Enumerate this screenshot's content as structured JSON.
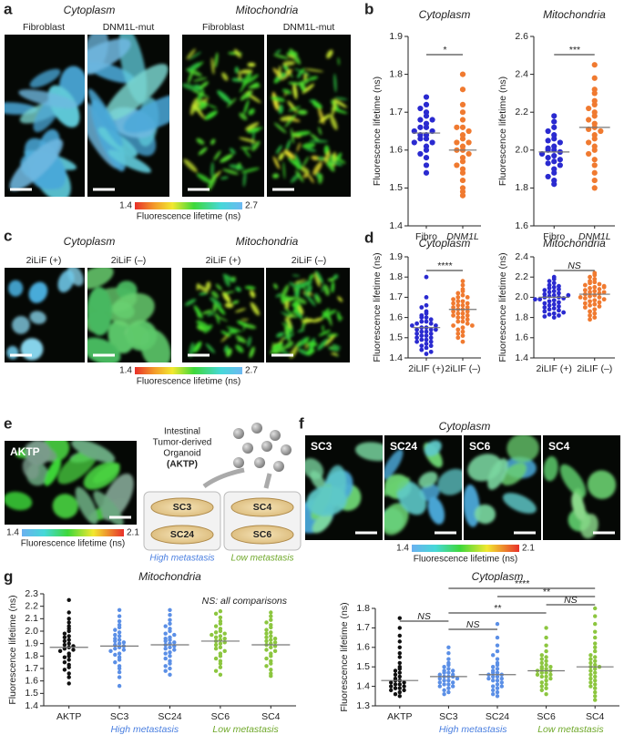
{
  "panels": {
    "a": {
      "letter": "a",
      "headers": [
        "Cytoplasm",
        "Mitochondria"
      ],
      "image_labels": [
        "Fibroblast",
        "DNM1L-mut",
        "Fibroblast",
        "DNM1L-mut"
      ],
      "colorbar": {
        "min": 1.4,
        "max": 2.7,
        "label": "Fluorescence lifetime (ns)"
      }
    },
    "b": {
      "letter": "b"
    },
    "c": {
      "letter": "c",
      "headers": [
        "Cytoplasm",
        "Mitochondria"
      ],
      "image_labels": [
        "2iLiF (+)",
        "2iLiF (–)",
        "2iLiF (+)",
        "2iLiF (–)"
      ],
      "colorbar": {
        "min": 1.4,
        "max": 2.7,
        "label": "Fluorescence lifetime (ns)"
      }
    },
    "d": {
      "letter": "d"
    },
    "e": {
      "letter": "e",
      "image_label": "AKTP",
      "colorbar": {
        "min": 1.4,
        "max": 2.1,
        "label": "Fluorescence lifetime (ns)"
      },
      "organoid_text": [
        "Intestinal",
        "Tumor-derived",
        "Organoid",
        "(AKTP)"
      ],
      "dishes": [
        "SC3",
        "SC24",
        "SC4",
        "SC6"
      ],
      "groups": [
        "High metastasis",
        "Low metastasis"
      ]
    },
    "f": {
      "letter": "f",
      "title": "Cytoplasm",
      "image_labels": [
        "SC3",
        "SC24",
        "SC6",
        "SC4"
      ],
      "colorbar": {
        "min": 1.4,
        "max": 2.1,
        "label": "Fluorescence lifetime (ns)"
      }
    },
    "g": {
      "letter": "g"
    }
  },
  "chart_data": [
    {
      "type": "strip",
      "title": "Cytoplasm",
      "ylabel": "Fluorescence lifetime (ns)",
      "categories": [
        "Fibro",
        "DNM1L"
      ],
      "colors": [
        "#2a2ad0",
        "#f07a30"
      ],
      "values": [
        [
          1.74,
          1.72,
          1.71,
          1.7,
          1.69,
          1.68,
          1.68,
          1.67,
          1.66,
          1.66,
          1.65,
          1.65,
          1.64,
          1.64,
          1.63,
          1.63,
          1.62,
          1.62,
          1.61,
          1.6,
          1.59,
          1.58,
          1.56,
          1.54
        ],
        [
          1.8,
          1.76,
          1.72,
          1.7,
          1.68,
          1.66,
          1.66,
          1.65,
          1.64,
          1.63,
          1.62,
          1.62,
          1.61,
          1.6,
          1.6,
          1.59,
          1.58,
          1.57,
          1.56,
          1.55,
          1.54,
          1.52,
          1.5,
          1.49,
          1.48
        ]
      ],
      "means": [
        1.645,
        1.6
      ],
      "ylim": [
        1.4,
        1.9
      ],
      "yticks": [
        1.4,
        1.5,
        1.6,
        1.7,
        1.8,
        1.9
      ],
      "comparisons": [
        {
          "from": "Fibro",
          "to": "DNM1L",
          "label": "*"
        }
      ]
    },
    {
      "type": "strip",
      "title": "Mitochondria",
      "ylabel": "Fluorescence lifetime (ns)",
      "categories": [
        "Fibro",
        "DNM1L"
      ],
      "colors": [
        "#2a2ad0",
        "#f07a30"
      ],
      "values": [
        [
          2.18,
          2.15,
          2.12,
          2.1,
          2.08,
          2.06,
          2.05,
          2.04,
          2.02,
          2.01,
          2.0,
          2.0,
          1.99,
          1.98,
          1.97,
          1.96,
          1.95,
          1.94,
          1.93,
          1.92,
          1.9,
          1.88,
          1.86,
          1.84,
          1.82
        ],
        [
          2.45,
          2.38,
          2.32,
          2.3,
          2.26,
          2.24,
          2.22,
          2.2,
          2.18,
          2.16,
          2.14,
          2.12,
          2.11,
          2.1,
          2.08,
          2.06,
          2.04,
          2.02,
          2.0,
          1.98,
          1.95,
          1.92,
          1.88,
          1.84,
          1.8
        ]
      ],
      "means": [
        1.99,
        2.12
      ],
      "ylim": [
        1.6,
        2.6
      ],
      "yticks": [
        1.6,
        1.8,
        {
          "value": 2,
          "label": "2.0"
        },
        2.2,
        2.4,
        2.6
      ],
      "comparisons": [
        {
          "from": "Fibro",
          "to": "DNM1L",
          "label": "***"
        }
      ]
    },
    {
      "type": "strip",
      "title": "Cytoplasm",
      "ylabel": "Fluorescence lifetime (ns)",
      "categories": [
        "2iLIF (+)",
        "2iLIF (–)"
      ],
      "colors": [
        "#2a2ad0",
        "#f07a30"
      ],
      "values": [
        [
          1.8,
          1.7,
          1.66,
          1.65,
          1.63,
          1.62,
          1.61,
          1.6,
          1.6,
          1.59,
          1.58,
          1.58,
          1.57,
          1.57,
          1.56,
          1.56,
          1.55,
          1.55,
          1.54,
          1.54,
          1.54,
          1.53,
          1.53,
          1.52,
          1.52,
          1.51,
          1.51,
          1.5,
          1.5,
          1.49,
          1.49,
          1.48,
          1.48,
          1.47,
          1.46,
          1.46,
          1.45,
          1.44,
          1.43,
          1.42
        ],
        [
          1.78,
          1.76,
          1.74,
          1.73,
          1.72,
          1.71,
          1.7,
          1.7,
          1.69,
          1.68,
          1.68,
          1.67,
          1.67,
          1.66,
          1.66,
          1.65,
          1.65,
          1.64,
          1.64,
          1.63,
          1.63,
          1.62,
          1.62,
          1.61,
          1.61,
          1.6,
          1.6,
          1.59,
          1.58,
          1.58,
          1.57,
          1.56,
          1.56,
          1.55,
          1.54,
          1.53,
          1.52,
          1.51,
          1.5,
          1.48
        ]
      ],
      "means": [
        1.55,
        1.64
      ],
      "ylim": [
        1.4,
        1.9
      ],
      "yticks": [
        1.4,
        1.5,
        1.6,
        1.7,
        1.8,
        1.9
      ],
      "comparisons": [
        {
          "from": "2iLIF (+)",
          "to": "2iLIF (–)",
          "label": "****"
        }
      ]
    },
    {
      "type": "strip",
      "title": "Mitochondria",
      "ylabel": "Fluorescence lifetime (ns)",
      "categories": [
        "2iLIF (+)",
        "2iLIF (–)"
      ],
      "colors": [
        "#2a2ad0",
        "#f07a30"
      ],
      "values": [
        [
          2.2,
          2.18,
          2.16,
          2.14,
          2.12,
          2.11,
          2.1,
          2.09,
          2.08,
          2.07,
          2.06,
          2.05,
          2.04,
          2.03,
          2.02,
          2.01,
          2.0,
          2.0,
          1.99,
          1.98,
          1.97,
          1.96,
          1.95,
          1.94,
          1.93,
          1.92,
          1.91,
          1.9,
          1.89,
          1.88,
          1.87,
          1.86,
          1.85,
          1.84,
          1.83,
          1.82,
          1.81,
          1.8,
          2.02,
          1.98
        ],
        [
          2.24,
          2.22,
          2.2,
          2.18,
          2.16,
          2.15,
          2.14,
          2.13,
          2.12,
          2.11,
          2.1,
          2.09,
          2.08,
          2.07,
          2.06,
          2.05,
          2.04,
          2.03,
          2.02,
          2.01,
          2.0,
          1.99,
          1.98,
          1.97,
          1.96,
          1.95,
          1.94,
          1.93,
          1.92,
          1.91,
          1.9,
          1.88,
          1.86,
          1.84,
          1.82,
          1.8,
          1.78,
          2.05,
          2.1,
          2.0
        ]
      ],
      "means": [
        2.0,
        2.03
      ],
      "ylim": [
        1.4,
        2.4
      ],
      "yticks": [
        1.4,
        1.6,
        1.8,
        {
          "value": 2,
          "label": "2.0"
        },
        2.2,
        2.4
      ],
      "comparisons": [
        {
          "from": "2iLIF (+)",
          "to": "2iLIF (–)",
          "label": "NS"
        }
      ]
    },
    {
      "type": "strip",
      "title": "Mitochondria",
      "ylabel": "Fluorescence lifetime (ns)",
      "categories": [
        "AKTP",
        "SC3",
        "SC24",
        "SC6",
        "SC4"
      ],
      "colors": [
        "#111111",
        "#5b8fe6",
        "#5b8fe6",
        "#8cc63f",
        "#8cc63f"
      ],
      "values": [
        [
          2.25,
          2.15,
          2.1,
          2.07,
          2.04,
          2.02,
          2.0,
          1.98,
          1.96,
          1.95,
          1.93,
          1.92,
          1.9,
          1.89,
          1.88,
          1.87,
          1.86,
          1.85,
          1.84,
          1.82,
          1.8,
          1.79,
          1.77,
          1.75,
          1.73,
          1.71,
          1.69,
          1.66,
          1.63,
          1.58
        ],
        [
          2.17,
          2.12,
          2.08,
          2.05,
          2.03,
          2.01,
          1.99,
          1.97,
          1.96,
          1.94,
          1.93,
          1.92,
          1.91,
          1.9,
          1.89,
          1.88,
          1.87,
          1.86,
          1.85,
          1.84,
          1.82,
          1.81,
          1.79,
          1.77,
          1.75,
          1.72,
          1.7,
          1.67,
          1.63,
          1.56
        ],
        [
          2.17,
          2.13,
          2.09,
          2.06,
          2.04,
          2.02,
          2.0,
          1.98,
          1.97,
          1.95,
          1.94,
          1.93,
          1.92,
          1.91,
          1.9,
          1.89,
          1.88,
          1.87,
          1.86,
          1.85,
          1.83,
          1.82,
          1.8,
          1.78,
          1.76,
          1.74,
          1.72,
          1.7,
          1.68,
          1.65
        ],
        [
          2.16,
          2.14,
          2.11,
          2.08,
          2.06,
          2.04,
          2.02,
          2.0,
          1.99,
          1.98,
          1.97,
          1.96,
          1.95,
          1.94,
          1.93,
          1.92,
          1.91,
          1.9,
          1.89,
          1.87,
          1.86,
          1.84,
          1.82,
          1.8,
          1.78,
          1.76,
          1.74,
          1.71,
          1.68,
          1.65
        ],
        [
          2.15,
          2.12,
          2.09,
          2.07,
          2.05,
          2.03,
          2.01,
          1.99,
          1.98,
          1.96,
          1.95,
          1.94,
          1.93,
          1.92,
          1.91,
          1.9,
          1.89,
          1.88,
          1.87,
          1.85,
          1.84,
          1.82,
          1.8,
          1.78,
          1.76,
          1.74,
          1.72,
          1.69,
          1.66,
          1.64
        ]
      ],
      "means": [
        1.87,
        1.88,
        1.89,
        1.92,
        1.89
      ],
      "ylim": [
        1.4,
        2.3
      ],
      "yticks": [
        1.4,
        1.5,
        1.6,
        1.7,
        1.8,
        1.9,
        {
          "value": 2,
          "label": "2.0"
        },
        2.1,
        2.2,
        2.3
      ],
      "note": "NS: all comparisons",
      "groups": [
        {
          "label": "High metastasis",
          "color": "#4a7fe0",
          "from": "SC3",
          "to": "SC24"
        },
        {
          "label": "Low metastasis",
          "color": "#6fa82a",
          "from": "SC6",
          "to": "SC4"
        }
      ]
    },
    {
      "type": "strip",
      "title": "Cytoplasm",
      "ylabel": "Fluorescence lifetime (ns)",
      "categories": [
        "AKTP",
        "SC3",
        "SC24",
        "SC6",
        "SC4"
      ],
      "colors": [
        "#111111",
        "#5b8fe6",
        "#5b8fe6",
        "#8cc63f",
        "#8cc63f"
      ],
      "values": [
        [
          1.75,
          1.7,
          1.66,
          1.63,
          1.6,
          1.57,
          1.55,
          1.52,
          1.5,
          1.49,
          1.48,
          1.47,
          1.46,
          1.45,
          1.44,
          1.43,
          1.43,
          1.42,
          1.42,
          1.41,
          1.41,
          1.4,
          1.4,
          1.39,
          1.39,
          1.38,
          1.38,
          1.37,
          1.36,
          1.35
        ],
        [
          1.6,
          1.57,
          1.54,
          1.52,
          1.51,
          1.5,
          1.49,
          1.48,
          1.48,
          1.47,
          1.47,
          1.46,
          1.46,
          1.45,
          1.45,
          1.45,
          1.44,
          1.44,
          1.43,
          1.43,
          1.42,
          1.42,
          1.41,
          1.41,
          1.4,
          1.4,
          1.39,
          1.38,
          1.37,
          1.36
        ],
        [
          1.72,
          1.65,
          1.61,
          1.58,
          1.56,
          1.54,
          1.52,
          1.51,
          1.5,
          1.49,
          1.48,
          1.47,
          1.47,
          1.46,
          1.46,
          1.45,
          1.45,
          1.44,
          1.44,
          1.43,
          1.43,
          1.42,
          1.41,
          1.4,
          1.4,
          1.39,
          1.38,
          1.37,
          1.36,
          1.35
        ],
        [
          1.7,
          1.65,
          1.61,
          1.58,
          1.56,
          1.55,
          1.54,
          1.53,
          1.52,
          1.51,
          1.5,
          1.5,
          1.49,
          1.49,
          1.48,
          1.48,
          1.47,
          1.47,
          1.46,
          1.46,
          1.45,
          1.45,
          1.44,
          1.43,
          1.42,
          1.41,
          1.4,
          1.39,
          1.38,
          1.36
        ],
        [
          1.8,
          1.76,
          1.72,
          1.68,
          1.65,
          1.62,
          1.6,
          1.58,
          1.56,
          1.55,
          1.54,
          1.53,
          1.52,
          1.51,
          1.5,
          1.5,
          1.49,
          1.48,
          1.47,
          1.46,
          1.45,
          1.44,
          1.43,
          1.42,
          1.41,
          1.4,
          1.39,
          1.37,
          1.35,
          1.33
        ]
      ],
      "means": [
        1.43,
        1.45,
        1.46,
        1.48,
        1.5
      ],
      "ylim": [
        1.3,
        1.8
      ],
      "yticks": [
        1.3,
        1.4,
        1.5,
        1.6,
        1.7,
        1.8
      ],
      "comparisons": [
        {
          "from": "SC3",
          "to": "SC4",
          "label": "****"
        },
        {
          "from": "SC24",
          "to": "SC4",
          "label": "**"
        },
        {
          "from": "SC6",
          "to": "SC4",
          "label": "NS"
        },
        {
          "from": "SC3",
          "to": "SC6",
          "label": "**"
        },
        {
          "from": "AKTP",
          "to": "SC3",
          "label": "NS"
        },
        {
          "from": "SC3",
          "to": "SC24",
          "label": "NS"
        }
      ],
      "groups": [
        {
          "label": "High metastasis",
          "color": "#4a7fe0",
          "from": "SC3",
          "to": "SC24"
        },
        {
          "label": "Low metastasis",
          "color": "#6fa82a",
          "from": "SC6",
          "to": "SC4"
        }
      ]
    }
  ]
}
